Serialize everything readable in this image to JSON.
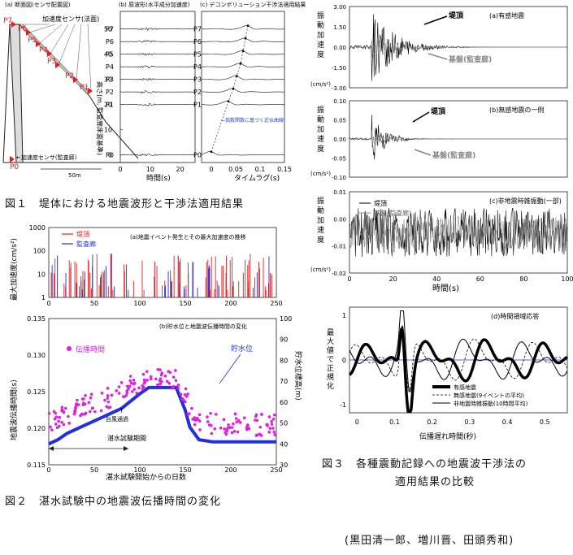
{
  "fig1": {
    "a_title": "(a) 断面図(センサ配置図)",
    "a_sensor_label": "加速度センサ(法面)",
    "a_base_sensor_label": "←加速度センサ(監査廊)",
    "a_scale_label": "50m",
    "b_title": "(b) 原波形(水平成分加速度)",
    "c_title": "(c) デコンボリューション干渉法適用結果",
    "ylabel": "高さ(m, 監査廊床面基準)",
    "b_xlabel": "時間(s)",
    "c_xlabel": "タイムラグ(s)",
    "c_note": "←指数関数に基づく近似曲線",
    "points": [
      "P7",
      "P6",
      "P5",
      "P4",
      "P3",
      "P2",
      "P1",
      "P0"
    ],
    "heights": [
      50,
      45,
      40,
      35,
      30,
      25,
      20,
      0
    ],
    "yticks": [
      "50",
      "40",
      "30",
      "20",
      "10",
      "0"
    ],
    "b_xticks": [
      "0",
      "10",
      "20"
    ],
    "c_xticks": [
      "0",
      "0.05",
      "0.1",
      "0.15"
    ],
    "caption": "図１　堤体における地震波形と干渉法適用結果"
  },
  "fig2": {
    "a_title": "(a)地震イベント発生とその最大加速度の推移",
    "a_ylabel": "最大加速度(cm/s²)",
    "a_legend": [
      "堤頂",
      "監査廊"
    ],
    "a_yticks": [
      "1000",
      "100",
      "10",
      "1"
    ],
    "xticks": [
      "0",
      "50",
      "100",
      "150",
      "200",
      "250"
    ],
    "b_title": "(b)貯水位と地震波伝播時間の変化",
    "b_ylabel": "地震波伝播時間(s)",
    "b_y2label": "貯水位標高(m)",
    "b_legend_time": "伝播時間",
    "b_legend_level": "貯水位",
    "b_typhoon": "台風通過",
    "b_period": "湛水試験期間",
    "b_xlabel": "湛水試験開始からの日数",
    "b_yticks": [
      "0.135",
      "0.130",
      "0.125",
      "0.120",
      "0.115"
    ],
    "b_y2ticks": [
      "100",
      "90",
      "80",
      "70",
      "60",
      "50",
      "40",
      "30"
    ],
    "caption": "図２　湛水試験中の地震波伝播時間の変化"
  },
  "fig3": {
    "a_title": "(a)有感地震",
    "b_title": "(b)無感地震の一例",
    "c_title": "(c)非地震時雑振動(一部)",
    "d_title": "(d)時間領域応答",
    "crest": "堤頂",
    "base": "基盤(監査廊)",
    "ylabel_chars": [
      "振",
      "動",
      "加",
      "速",
      "度"
    ],
    "yunit": "(cm/s²)",
    "a_yticks": [
      "3.00",
      "1.50",
      "0.00",
      "-1.50",
      "-3.00"
    ],
    "b_yticks": [
      "0.10",
      "0.05",
      "0.00",
      "-0.05",
      "-0.10"
    ],
    "c_yticks": [
      "0.01",
      "0.00",
      "-0.01",
      "-0.02"
    ],
    "t_xticks": [
      "0",
      "20",
      "40",
      "60",
      "80",
      "100"
    ],
    "t_xlabel": "時間(s)",
    "d_ylabel_chars": [
      "最",
      "大",
      "値",
      "で",
      "正",
      "規",
      "化"
    ],
    "d_yticks": [
      "1",
      "0",
      "-1"
    ],
    "d_xticks": [
      "0",
      "0.1",
      "0.2",
      "0.3",
      "0.4",
      "0.5"
    ],
    "d_xlabel": "伝播遅れ時間(秒)",
    "d_legend": [
      "有感地震",
      "無感地震(9イベントの平均)",
      "非地震時雑振動(10時間平均)"
    ],
    "caption_line1": "図３　各種震動記録への地震波干渉法の",
    "caption_line2": "適用結果の比較"
  },
  "authors": "(黒田清一郎、増川晋、田頭秀和)",
  "chart_data": [
    {
      "type": "line",
      "title": "(b) 原波形(水平成分加速度)",
      "series": [
        {
          "name": "P7"
        },
        {
          "name": "P6"
        },
        {
          "name": "P5"
        },
        {
          "name": "P4"
        },
        {
          "name": "P3"
        },
        {
          "name": "P2"
        },
        {
          "name": "P1"
        },
        {
          "name": "P0"
        }
      ],
      "xlabel": "時間(s)",
      "ylabel": "高さ(m, 監査廊床面基準)",
      "xlim": [
        0,
        25
      ],
      "ylim": [
        -3,
        57
      ]
    },
    {
      "type": "line",
      "title": "(c) デコンボリューション干渉法適用結果",
      "peak_lag_s": [
        0.075,
        0.07,
        0.065,
        0.06,
        0.052,
        0.045,
        0.035,
        0.0
      ],
      "heights_m": [
        50,
        45,
        40,
        35,
        30,
        25,
        20,
        0
      ],
      "xlabel": "タイムラグ(s)",
      "xlim": [
        -0.02,
        0.15
      ]
    },
    {
      "type": "bar",
      "title": "(a)地震イベント発生とその最大加速度の推移",
      "xlabel": "湛水試験開始からの日数",
      "ylabel": "最大加速度(cm/s²)",
      "ylim": [
        1,
        1000
      ],
      "yscale": "log",
      "xlim": [
        0,
        250
      ]
    },
    {
      "type": "line",
      "title": "(b)貯水位と地震波伝播時間の変化",
      "xlabel": "湛水試験開始からの日数",
      "ylabel": "地震波伝播時間(s)",
      "y2label": "貯水位標高(m)",
      "ylim": [
        0.115,
        0.135
      ],
      "y2lim": [
        30,
        100
      ],
      "xlim": [
        0,
        250
      ],
      "series": [
        {
          "name": "貯水位",
          "x": [
            0,
            10,
            20,
            40,
            60,
            80,
            100,
            110,
            120,
            130,
            140,
            150,
            155,
            165,
            180,
            200,
            220,
            240,
            250
          ],
          "y": [
            40,
            42,
            45,
            49,
            53,
            57,
            64,
            67,
            67,
            67,
            67,
            56,
            48,
            42,
            41,
            41,
            41,
            41,
            41
          ]
        },
        {
          "name": "伝播時間",
          "x": [
            0,
            10,
            20,
            40,
            60,
            80,
            100,
            110,
            120,
            130,
            140,
            150,
            155,
            165,
            180,
            200,
            220,
            240,
            250
          ],
          "y": [
            0.121,
            0.1215,
            0.122,
            0.123,
            0.124,
            0.125,
            0.1265,
            0.127,
            0.1272,
            0.1268,
            0.127,
            0.1245,
            0.1225,
            0.121,
            0.1205,
            0.1205,
            0.1205,
            0.1205,
            0.1205
          ]
        }
      ]
    },
    {
      "type": "line",
      "title": "(a)有感地震",
      "xlabel": "時間(s)",
      "ylim": [
        -3,
        3
      ],
      "xlim": [
        0,
        100
      ]
    },
    {
      "type": "line",
      "title": "(b)無感地震の一例",
      "xlabel": "時間(s)",
      "ylim": [
        -0.1,
        0.1
      ],
      "xlim": [
        0,
        100
      ]
    },
    {
      "type": "line",
      "title": "(c)非地震時雑振動(一部)",
      "xlabel": "時間(s)",
      "ylim": [
        -0.02,
        0.01
      ],
      "xlim": [
        0,
        100
      ]
    },
    {
      "type": "line",
      "title": "(d)時間領域応答",
      "xlabel": "伝播遅れ時間(秒)",
      "ylabel": "最大値で正規化",
      "xlim": [
        -0.02,
        0.56
      ],
      "ylim": [
        -1.2,
        1.2
      ],
      "peak_lag_s": 0.12
    }
  ]
}
